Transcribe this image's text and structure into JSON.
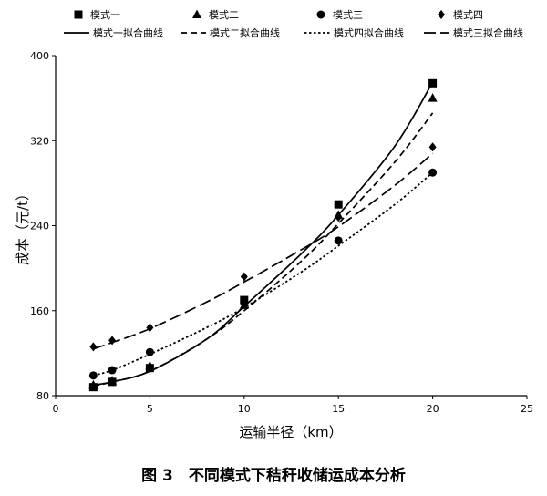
{
  "caption": "图 3　不同模式下秸秆收储运成本分析",
  "chart_data": {
    "type": "scatter",
    "xlabel": "运输半径（km）",
    "ylabel": "成本（元/t）",
    "xlim": [
      0,
      25
    ],
    "ylim": [
      80,
      400
    ],
    "xticks": [
      0,
      5,
      10,
      15,
      20,
      25
    ],
    "yticks": [
      80,
      160,
      240,
      320,
      400
    ],
    "grid": false,
    "legend_position": "top",
    "series": [
      {
        "name": "模式一",
        "marker": "square",
        "x": [
          2,
          3,
          5,
          10,
          15,
          20
        ],
        "y": [
          88,
          93,
          106,
          170,
          260,
          374
        ]
      },
      {
        "name": "模式二",
        "marker": "triangle",
        "x": [
          2,
          3,
          5,
          10,
          15,
          20
        ],
        "y": [
          90,
          94,
          108,
          165,
          250,
          360
        ]
      },
      {
        "name": "模式三",
        "marker": "circle",
        "x": [
          2,
          3,
          5,
          10,
          15,
          20
        ],
        "y": [
          99,
          104,
          121,
          168,
          226,
          290
        ]
      },
      {
        "name": "模式四",
        "marker": "diamond",
        "x": [
          2,
          3,
          5,
          10,
          15,
          20
        ],
        "y": [
          126,
          132,
          144,
          192,
          248,
          314
        ]
      }
    ],
    "fits": [
      {
        "name": "模式一拟合曲线",
        "dash": "solid",
        "x": [
          2,
          3,
          5,
          8,
          10,
          13,
          15,
          18,
          20
        ],
        "y": [
          90,
          93,
          103,
          133,
          164,
          213,
          250,
          315,
          375
        ]
      },
      {
        "name": "模式二拟合曲线",
        "dash": "dash",
        "x": [
          2,
          3,
          5,
          8,
          10,
          13,
          15,
          18,
          20
        ],
        "y": [
          89,
          93,
          103,
          133,
          160,
          206,
          242,
          300,
          346
        ]
      },
      {
        "name": "模式四拟合曲线",
        "dash": "dot",
        "x": [
          2,
          3,
          5,
          8,
          10,
          13,
          15,
          18,
          20
        ],
        "y": [
          99,
          104,
          119,
          144,
          163,
          196,
          221,
          260,
          290
        ]
      },
      {
        "name": "模式三拟合曲线",
        "dash": "longdash",
        "x": [
          2,
          3,
          5,
          8,
          10,
          13,
          15,
          18,
          20
        ],
        "y": [
          124,
          130,
          143,
          168,
          187,
          217,
          239,
          278,
          308
        ]
      }
    ]
  }
}
